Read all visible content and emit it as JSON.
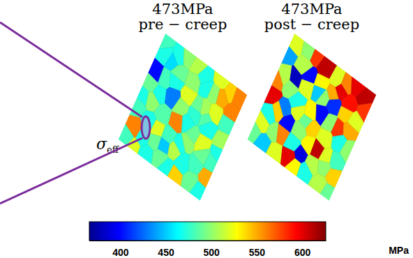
{
  "chart_data": {
    "type": "heatmap",
    "row_label": "σ",
    "row_label_subscript": "eff",
    "panels": [
      {
        "title": "473MPa",
        "subtitle": "pre − creep",
        "cells": [
          [
            480,
            470,
            500,
            510,
            470,
            520,
            540,
            560
          ],
          [
            470,
            455,
            490,
            500,
            470,
            500,
            550,
            560
          ],
          [
            400,
            480,
            470,
            520,
            490,
            505,
            520,
            480
          ],
          [
            490,
            470,
            430,
            500,
            475,
            485,
            470,
            505
          ],
          [
            470,
            500,
            485,
            560,
            470,
            490,
            520,
            470
          ],
          [
            480,
            470,
            520,
            480,
            470,
            500,
            490,
            480
          ],
          [
            560,
            470,
            490,
            450,
            510,
            470,
            480,
            550
          ],
          [
            480,
            520,
            470,
            490,
            470,
            540,
            490,
            470
          ]
        ]
      },
      {
        "title": "473MPa",
        "subtitle": "post − creep",
        "cells": [
          [
            520,
            500,
            580,
            610,
            520,
            560,
            600,
            610
          ],
          [
            440,
            510,
            400,
            530,
            550,
            600,
            590,
            580
          ],
          [
            510,
            380,
            520,
            450,
            500,
            410,
            540,
            520
          ],
          [
            560,
            500,
            470,
            530,
            400,
            500,
            580,
            550
          ],
          [
            600,
            430,
            520,
            490,
            540,
            520,
            470,
            500
          ],
          [
            470,
            540,
            400,
            500,
            530,
            610,
            520,
            480
          ],
          [
            520,
            500,
            560,
            470,
            390,
            510,
            500,
            540
          ],
          [
            490,
            450,
            520,
            600,
            530,
            470,
            510,
            490
          ]
        ]
      }
    ],
    "colorbar": {
      "range": [
        366,
        626
      ],
      "ticks": [
        400,
        450,
        500,
        550,
        600
      ],
      "label": "MPa"
    }
  }
}
